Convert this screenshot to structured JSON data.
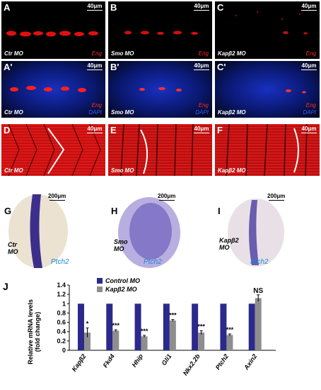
{
  "row1": [
    {
      "label": "A",
      "condition": "Ctr MO",
      "stain": "Eng",
      "scale": "40μm"
    },
    {
      "label": "B",
      "condition": "Smo MO",
      "stain": "Eng",
      "scale": "40μm"
    },
    {
      "label": "C",
      "condition": "Kapβ2 MO",
      "stain": "Eng",
      "scale": "40μm"
    }
  ],
  "row2": [
    {
      "label": "A'",
      "condition": "Ctr MO",
      "stain1": "Eng",
      "stain2": "DAPI",
      "scale": "40μm"
    },
    {
      "label": "B'",
      "condition": "Smo MO",
      "stain1": "Eng",
      "stain2": "DAPI",
      "scale": "40μm"
    },
    {
      "label": "C'",
      "condition": "Kapβ2 MO",
      "stain1": "Eng",
      "stain2": "DAPI",
      "scale": "40μm"
    }
  ],
  "row3": [
    {
      "label": "D",
      "condition": "Ctr MO",
      "scale": "40μm"
    },
    {
      "label": "E",
      "condition": "Smo MO",
      "scale": "40μm"
    },
    {
      "label": "F",
      "condition": "Kapβ2 MO",
      "scale": "40μm"
    }
  ],
  "row4": [
    {
      "label": "G",
      "condition_l1": "Ctr",
      "condition_l2": "MO",
      "stain": "Ptch2",
      "scale": "200μm"
    },
    {
      "label": "H",
      "condition_l1": "Smo",
      "condition_l2": "MO",
      "stain": "Ptch2",
      "scale": "200μm"
    },
    {
      "label": "I",
      "condition_l1": "Kapβ2",
      "condition_l2": "MO",
      "stain": "Ptch2",
      "scale": "200μm"
    }
  ],
  "panelJ": {
    "label": "J",
    "legend": [
      "Control MO",
      "Kapβ2 MO"
    ],
    "significance": [
      "*",
      "***",
      "***",
      "***",
      "***",
      "***",
      "NS"
    ]
  },
  "chart_data": {
    "type": "bar",
    "categories": [
      "Kapβ2",
      "Fkd4",
      "Hhip",
      "Gli1",
      "Nkx2.2b",
      "Ptch2",
      "Axin2"
    ],
    "series": [
      {
        "name": "Control MO",
        "values": [
          1,
          1,
          1,
          1,
          1,
          1,
          1
        ]
      },
      {
        "name": "Kapβ2 MO",
        "values": [
          0.38,
          0.42,
          0.3,
          0.64,
          0.38,
          0.33,
          1.12
        ]
      }
    ],
    "errors": [
      0.1,
      0.02,
      0.02,
      0.02,
      0.04,
      0.02,
      0.07
    ],
    "ylabel_l1": "Relative mRNA levels",
    "ylabel_l2": "(fold change)",
    "ylim": [
      0,
      1.4
    ],
    "yticks": [
      "0",
      "0.2",
      "0.4",
      "0.6",
      "0.8",
      "1",
      "1.2",
      "1.4"
    ],
    "colors": {
      "Control MO": "#2b2a8c",
      "Kapβ2 MO": "#8e8e8e"
    }
  }
}
